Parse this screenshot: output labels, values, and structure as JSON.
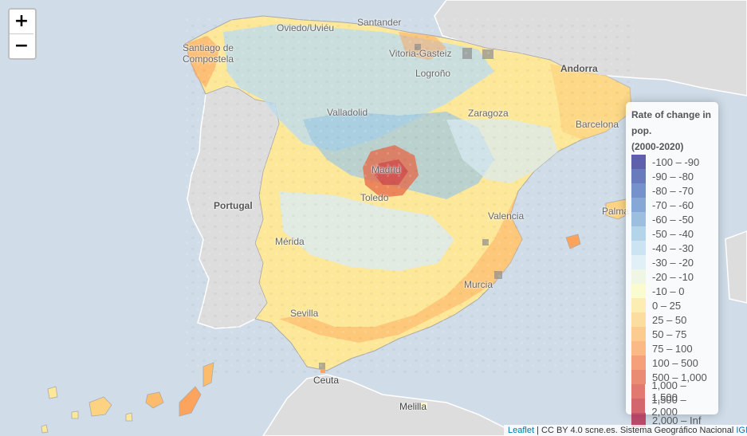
{
  "zoom": {
    "in_label": "+",
    "out_label": "−"
  },
  "places": {
    "santander": "Santander",
    "oviedo": "Oviedo/Uviéu",
    "santiago_1": "Santiago de",
    "santiago_2": "Compostela",
    "vitoria": "Vitoria-Gasteiz",
    "logrono": "Logroño",
    "andorra": "Andorra",
    "valladolid": "Valladolid",
    "zaragoza": "Zaragoza",
    "barcelona": "Barcelona",
    "portugal": "Portugal",
    "madrid": "Madrid",
    "toledo": "Toledo",
    "valencia": "Valencia",
    "palma": "Palma",
    "merida": "Mérida",
    "murcia": "Murcia",
    "sevilla": "Sevilla",
    "ceuta": "Ceuta",
    "melilla": "Melilla"
  },
  "legend": {
    "title_1": "Rate of change in pop.",
    "title_2": "(2000-2020)",
    "items": [
      {
        "label": "-100 – -90",
        "color": "#2c2c91"
      },
      {
        "label": "-90 – -80",
        "color": "#3a4fa8"
      },
      {
        "label": "-80 – -70",
        "color": "#4a6fbd"
      },
      {
        "label": "-70 – -60",
        "color": "#5f8cc9"
      },
      {
        "label": "-60 – -50",
        "color": "#7eabd6"
      },
      {
        "label": "-50 – -40",
        "color": "#9cc7e3"
      },
      {
        "label": "-40 – -30",
        "color": "#bddcee"
      },
      {
        "label": "-30 – -20",
        "color": "#d9ebf4"
      },
      {
        "label": "-20 – -10",
        "color": "#ecf5dc"
      },
      {
        "label": "-10 – 0",
        "color": "#fbfbc0"
      },
      {
        "label": "0 – 25",
        "color": "#fde89a"
      },
      {
        "label": "25 – 50",
        "color": "#fdd382"
      },
      {
        "label": "50 – 75",
        "color": "#fdbb6c"
      },
      {
        "label": "75 – 100",
        "color": "#fca35e"
      },
      {
        "label": "100 – 500",
        "color": "#f4824f"
      },
      {
        "label": "500 – 1,000",
        "color": "#e56645"
      },
      {
        "label": "1,000 – 1,500",
        "color": "#d94e41"
      },
      {
        "label": "1,500 – 2,000",
        "color": "#c8343f"
      },
      {
        "label": "2,000 – Inf",
        "color": "#b0183f"
      }
    ]
  },
  "attribution": {
    "leaflet": "Leaflet",
    "rest": " | CC BY 4.0 scne.es. Sistema Geográfico Nacional ",
    "ign": "IGN"
  }
}
